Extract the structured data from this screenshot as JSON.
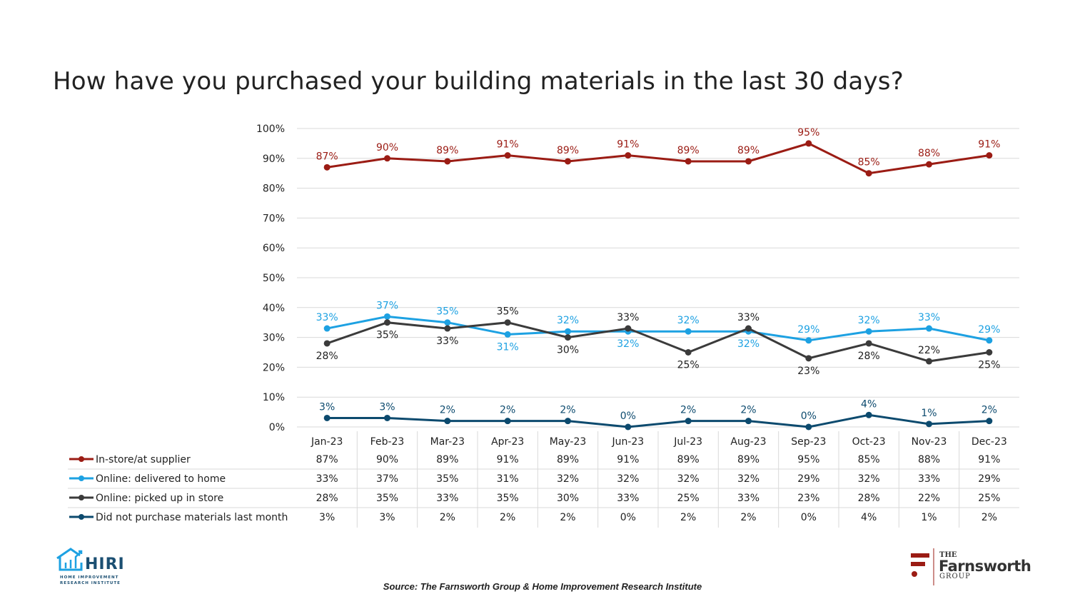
{
  "title": "How have you purchased your building materials in the last 30 days?",
  "source": "Source: The Farnsworth Group & Home Improvement Research Institute",
  "logos": {
    "hiri": {
      "name": "HIRI",
      "subtitle": "HOME IMPROVEMENT RESEARCH INSTITUTE"
    },
    "farnsworth": {
      "the": "THE",
      "name": "Farnsworth",
      "group": "GROUP"
    }
  },
  "chart_data": {
    "type": "line",
    "title": "How have you purchased your building materials in the last 30 days?",
    "categories": [
      "Jan-23",
      "Feb-23",
      "Mar-23",
      "Apr-23",
      "May-23",
      "Jun-23",
      "Jul-23",
      "Aug-23",
      "Sep-23",
      "Oct-23",
      "Nov-23",
      "Dec-23"
    ],
    "ylim": [
      0,
      100
    ],
    "yticks": [
      "0%",
      "10%",
      "20%",
      "30%",
      "40%",
      "50%",
      "60%",
      "70%",
      "80%",
      "90%",
      "100%"
    ],
    "grid": true,
    "legend": "data-table-below",
    "series": [
      {
        "name": "In-store/at supplier",
        "color": "#9b1c14",
        "values": [
          87,
          90,
          89,
          91,
          89,
          91,
          89,
          89,
          95,
          85,
          88,
          91
        ]
      },
      {
        "name": "Online: delivered to home",
        "color": "#1da1e2",
        "values": [
          33,
          37,
          35,
          31,
          32,
          32,
          32,
          32,
          29,
          32,
          33,
          29
        ]
      },
      {
        "name": "Online: picked up in store",
        "color": "#3b3b3b",
        "values": [
          28,
          35,
          33,
          35,
          30,
          33,
          25,
          33,
          23,
          28,
          22,
          25
        ]
      },
      {
        "name": "Did not purchase materials last month",
        "color": "#0c4a6e",
        "values": [
          3,
          3,
          2,
          2,
          2,
          0,
          2,
          2,
          0,
          4,
          1,
          2
        ]
      }
    ]
  }
}
